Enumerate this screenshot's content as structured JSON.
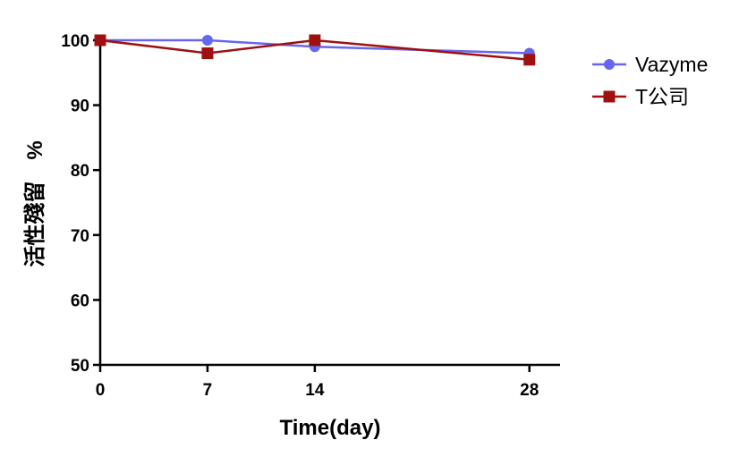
{
  "chart_data": {
    "type": "line",
    "xlabel": "Time(day)",
    "ylabel": "活性殘留　%",
    "x": [
      0,
      7,
      14,
      28
    ],
    "x_tick_labels": [
      "0",
      "7",
      "14",
      "28"
    ],
    "y_tick_labels": [
      "50",
      "60",
      "70",
      "80",
      "90",
      "100"
    ],
    "xlim": [
      0,
      30
    ],
    "ylim": [
      50,
      100
    ],
    "grid": false,
    "legend_position": "top-right",
    "series": [
      {
        "name": "Vazyme",
        "values": [
          100,
          100,
          99,
          98
        ],
        "color": "#6666ee",
        "marker": "circle"
      },
      {
        "name": "T公司",
        "values": [
          100,
          98,
          100,
          97
        ],
        "color": "#a01010",
        "marker": "square"
      }
    ]
  }
}
